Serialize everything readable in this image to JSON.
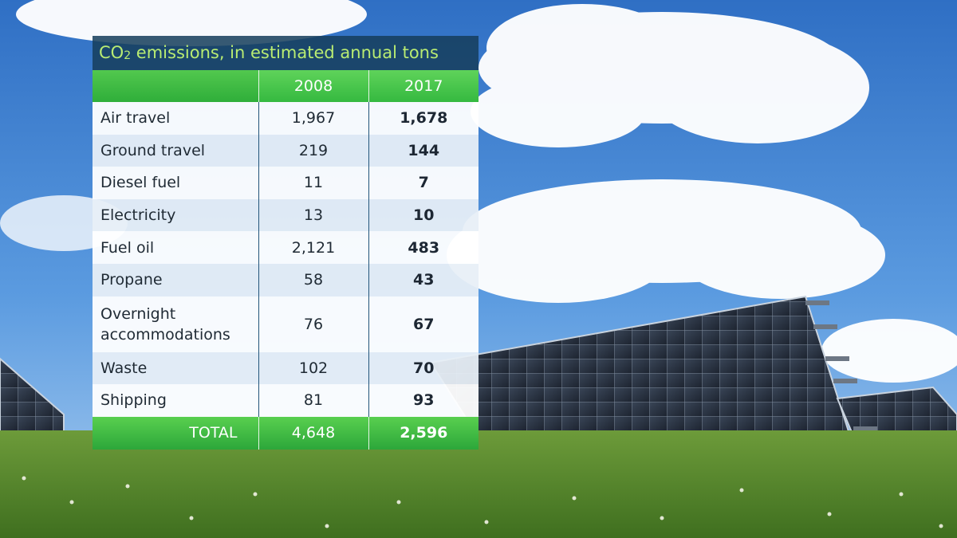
{
  "chart_data": {
    "type": "table",
    "title": "CO",
    "title_sub": "2",
    "title_rest": " emissions, in estimated annual tons",
    "columns": [
      "",
      "2008",
      "2017"
    ],
    "rows": [
      {
        "category": "Air travel",
        "v2008": "1,967",
        "v2017": "1,678"
      },
      {
        "category": "Ground travel",
        "v2008": "219",
        "v2017": "144"
      },
      {
        "category": "Diesel fuel",
        "v2008": "11",
        "v2017": "7"
      },
      {
        "category": "Electricity",
        "v2008": "13",
        "v2017": "10"
      },
      {
        "category": "Fuel oil",
        "v2008": "2,121",
        "v2017": "483"
      },
      {
        "category": "Propane",
        "v2008": "58",
        "v2017": "43"
      },
      {
        "category": "Overnight accommodations",
        "v2008": "76",
        "v2017": "67"
      },
      {
        "category": "Waste",
        "v2008": "102",
        "v2017": "70"
      },
      {
        "category": "Shipping",
        "v2008": "81",
        "v2017": "93"
      }
    ],
    "total": {
      "label": "TOTAL",
      "v2008": "4,648",
      "v2017": "2,596"
    },
    "colors": {
      "header_green": "#3dbf44",
      "title_bg": "#163e5c",
      "title_text": "#b9ec72"
    }
  }
}
